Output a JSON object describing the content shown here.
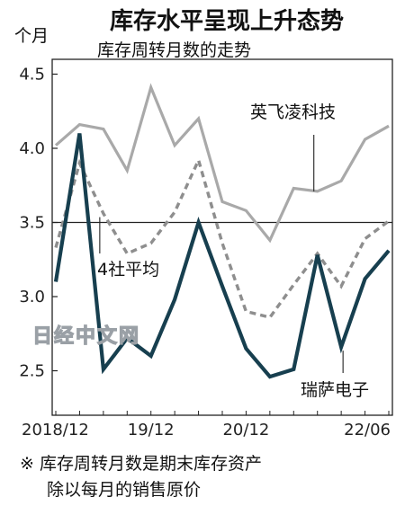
{
  "chart_data": {
    "type": "line",
    "title": "库存水平呈现上升态势",
    "subtitle": "库存周转月数的走势",
    "ylabel": "个月",
    "ylim": [
      2.2,
      4.6
    ],
    "yticks": [
      "2.5",
      "3.0",
      "3.5",
      "4.0",
      "4.5"
    ],
    "ytick_values": [
      2.5,
      3.0,
      3.5,
      4.0,
      4.5
    ],
    "xtick_labels": [
      "2018/12",
      "19/12",
      "20/12",
      "22/06"
    ],
    "xtick_index": [
      0,
      4,
      8,
      14
    ],
    "x_count": 15,
    "reference_line": 3.5,
    "series": [
      {
        "name": "英飞凌科技",
        "style": "solid",
        "color": "#a9a9a9",
        "values": [
          4.02,
          4.16,
          4.13,
          3.85,
          4.41,
          4.02,
          4.2,
          3.64,
          3.58,
          3.38,
          3.73,
          3.71,
          3.78,
          4.06,
          4.15
        ]
      },
      {
        "name": "4社平均",
        "style": "dashed",
        "color": "#8e8e8e",
        "values": [
          3.33,
          3.9,
          3.56,
          3.29,
          3.36,
          3.57,
          3.92,
          3.36,
          2.9,
          2.86,
          3.08,
          3.29,
          3.07,
          3.39,
          3.51
        ]
      },
      {
        "name": "瑞萨电子",
        "style": "solid",
        "color": "#173f4f",
        "values": [
          3.1,
          4.1,
          2.51,
          2.72,
          2.6,
          2.98,
          3.5,
          3.07,
          2.65,
          2.46,
          2.51,
          3.28,
          2.66,
          3.12,
          3.31
        ]
      }
    ],
    "footnote": [
      "※ 库存周转月数是期末库存资产",
      "除以每月的销售原价"
    ],
    "watermark": "日经中文网",
    "grid": false
  }
}
